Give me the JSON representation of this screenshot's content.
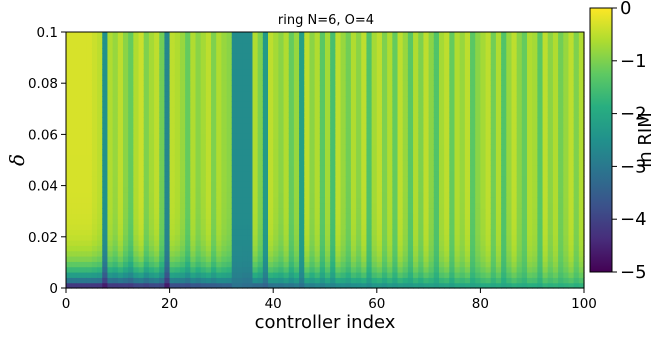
{
  "chart_data": {
    "type": "heatmap",
    "title": "ring N=6, O=4",
    "xlabel": "controller index",
    "ylabel": "δ",
    "colorbar_label": "ln RIM",
    "colormap": "viridis",
    "xlim": [
      0,
      100
    ],
    "ylim": [
      0,
      0.1
    ],
    "clim": [
      -5,
      0
    ],
    "x_ticks": [
      0,
      20,
      40,
      60,
      80,
      100
    ],
    "x_tick_labels": [
      "0",
      "20",
      "40",
      "60",
      "80",
      "100"
    ],
    "y_ticks": [
      0,
      0.02,
      0.04,
      0.06,
      0.08,
      0.1
    ],
    "y_tick_labels": [
      "0",
      "0.02",
      "0.04",
      "0.06",
      "0.08",
      "0.1"
    ],
    "colorbar_ticks": [
      0,
      -1,
      -2,
      -3,
      -4,
      -5
    ],
    "colorbar_tick_labels": [
      "0",
      "−1",
      "−2",
      "−3",
      "−4",
      "−5"
    ],
    "column_plateau_ln_rim": [
      -0.3,
      -0.3,
      -0.3,
      -0.3,
      -0.3,
      -0.4,
      -0.5,
      -2.5,
      -0.6,
      -0.8,
      -0.5,
      -0.9,
      -1.2,
      -0.6,
      -0.4,
      -1.0,
      -0.7,
      -0.5,
      -1.1,
      -2.7,
      -0.5,
      -0.6,
      -0.8,
      -1.2,
      -0.6,
      -0.9,
      -0.7,
      -0.5,
      -1.0,
      -0.6,
      -0.8,
      -0.9,
      -2.6,
      -2.6,
      -2.6,
      -2.6,
      -0.6,
      -1.0,
      -2.3,
      -0.5,
      -0.7,
      -0.9,
      -0.6,
      -1.2,
      -0.8,
      -2.2,
      -0.5,
      -0.9,
      -0.6,
      -1.3,
      -0.7,
      -1.5,
      -0.5,
      -0.8,
      -1.1,
      -0.6,
      -0.9,
      -0.5,
      -1.4,
      -0.7,
      -0.5,
      -1.0,
      -0.6,
      -1.2,
      -0.5,
      -0.8,
      -1.3,
      -0.6,
      -1.0,
      -0.5,
      -0.9,
      -1.4,
      -0.7,
      -0.5,
      -1.2,
      -0.6,
      -0.8,
      -0.5,
      -1.3,
      -0.9,
      -0.7,
      -0.5,
      -1.1,
      -0.6,
      -1.4,
      -0.8,
      -0.5,
      -0.9,
      -1.2,
      -0.6,
      -0.7,
      -1.3,
      -0.5,
      -0.9,
      -0.6,
      -1.1,
      -0.8,
      -0.5,
      -1.0,
      -0.6
    ],
    "column_floor_ln_rim": [
      -4.9,
      -4.9,
      -4.9,
      -4.9,
      -4.9,
      -4.9,
      -4.9,
      -5.0,
      -4.8,
      -4.8,
      -4.8,
      -4.7,
      -4.7,
      -4.6,
      -4.6,
      -4.6,
      -4.5,
      -4.5,
      -4.5,
      -5.0,
      -4.4,
      -4.4,
      -4.3,
      -4.3,
      -4.2,
      -4.2,
      -4.1,
      -4.1,
      -4.0,
      -4.0,
      -3.9,
      -3.9,
      -3.2,
      -3.2,
      -3.3,
      -3.3,
      -3.8,
      -3.7,
      -3.6,
      -3.6,
      -3.5,
      -3.5,
      -3.4,
      -3.4,
      -3.3,
      -3.3,
      -3.2,
      -3.2,
      -3.1,
      -3.1,
      -3.0,
      -3.0,
      -3.0,
      -2.9,
      -2.9,
      -2.9,
      -2.8,
      -2.8,
      -2.8,
      -2.7,
      -2.7,
      -2.7,
      -2.6,
      -2.6,
      -2.6,
      -2.6,
      -2.5,
      -2.5,
      -2.5,
      -2.5,
      -2.4,
      -2.4,
      -2.4,
      -2.4,
      -2.4,
      -2.3,
      -2.3,
      -2.3,
      -2.3,
      -2.3,
      -2.2,
      -2.2,
      -2.2,
      -2.2,
      -2.2,
      -2.2,
      -2.1,
      -2.1,
      -2.1,
      -2.1,
      -2.1,
      -2.1,
      -2.0,
      -2.0,
      -2.0,
      -2.0,
      -2.0,
      -2.0,
      -2.0,
      -2.0
    ],
    "transition_delta": 0.006,
    "delta_rows": 48
  }
}
